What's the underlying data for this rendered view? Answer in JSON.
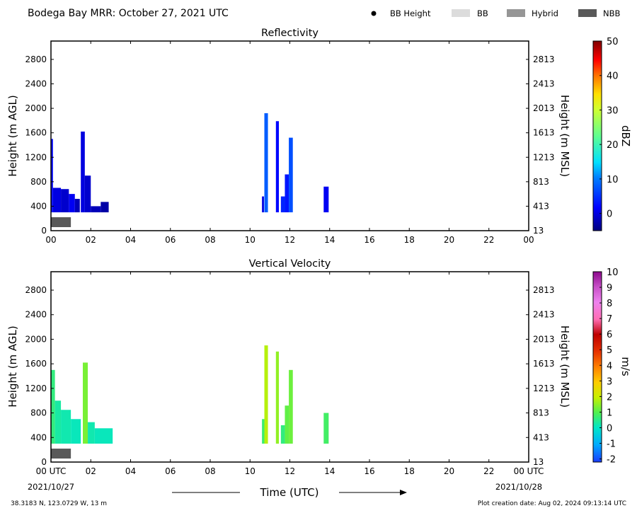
{
  "figure_title": "Bodega Bay MRR:  October 27, 2021 UTC",
  "legend": [
    {
      "label": "BB Height",
      "kind": "dot",
      "color": "#000000"
    },
    {
      "label": "BB",
      "kind": "box",
      "color": "#dcdcdc"
    },
    {
      "label": "Hybrid",
      "kind": "box",
      "color": "#969696"
    },
    {
      "label": "NBB",
      "kind": "box",
      "color": "#595959"
    }
  ],
  "x_label": "Time (UTC)",
  "x_ticks": [
    "00",
    "02",
    "04",
    "06",
    "08",
    "10",
    "12",
    "14",
    "16",
    "18",
    "20",
    "22",
    "00"
  ],
  "x_ticks_bottom": [
    "00 UTC",
    "02",
    "04",
    "06",
    "08",
    "10",
    "12",
    "14",
    "16",
    "18",
    "20",
    "22",
    "00 UTC"
  ],
  "date_start": "2021/10/27",
  "date_end": "2021/10/28",
  "footer_left": "38.3183 N, 123.0729 W, 13 m",
  "footer_right": "Plot creation date: Aug 02, 2024 09:13:14 UTC",
  "chart_data": [
    {
      "type": "heatmap",
      "title": "Reflectivity",
      "xlabel": "",
      "ylabel": "Height (m AGL)",
      "ylabel_right": "Height (m MSL)",
      "xlim": [
        0,
        24
      ],
      "ylim": [
        0,
        3100
      ],
      "yticks": [
        0,
        400,
        800,
        1200,
        1600,
        2000,
        2400,
        2800
      ],
      "yticks_right": [
        "13",
        "413",
        "813",
        "1213",
        "1613",
        "2013",
        "2413",
        "2813"
      ],
      "colorbar": {
        "label": "dBZ",
        "min": -5,
        "max": 50,
        "ticks": [
          0,
          10,
          20,
          30,
          40,
          50
        ]
      },
      "bright_band": [
        {
          "class": "NBB",
          "t_start": 0.0,
          "t_end": 1.0
        }
      ],
      "cells": [
        {
          "t0": 0.0,
          "t1": 0.1,
          "h0": 300,
          "h1": 1500,
          "v": 2
        },
        {
          "t0": 0.1,
          "t1": 0.5,
          "h0": 300,
          "h1": 700,
          "v": 0
        },
        {
          "t0": 0.5,
          "t1": 0.9,
          "h0": 300,
          "h1": 680,
          "v": -1
        },
        {
          "t0": 0.9,
          "t1": 1.2,
          "h0": 300,
          "h1": 600,
          "v": 1
        },
        {
          "t0": 1.2,
          "t1": 1.45,
          "h0": 300,
          "h1": 520,
          "v": -2
        },
        {
          "t0": 1.5,
          "t1": 1.7,
          "h0": 300,
          "h1": 1620,
          "v": 0
        },
        {
          "t0": 1.7,
          "t1": 2.0,
          "h0": 300,
          "h1": 900,
          "v": -1
        },
        {
          "t0": 2.0,
          "t1": 2.5,
          "h0": 300,
          "h1": 400,
          "v": -2
        },
        {
          "t0": 2.5,
          "t1": 2.9,
          "h0": 300,
          "h1": 470,
          "v": -3
        },
        {
          "t0": 10.6,
          "t1": 10.7,
          "h0": 300,
          "h1": 560,
          "v": 0
        },
        {
          "t0": 10.72,
          "t1": 10.9,
          "h0": 300,
          "h1": 1920,
          "v": 8
        },
        {
          "t0": 11.3,
          "t1": 11.45,
          "h0": 300,
          "h1": 1790,
          "v": 2
        },
        {
          "t0": 11.55,
          "t1": 11.75,
          "h0": 300,
          "h1": 560,
          "v": 4
        },
        {
          "t0": 11.75,
          "t1": 11.95,
          "h0": 300,
          "h1": 920,
          "v": 3
        },
        {
          "t0": 11.95,
          "t1": 12.15,
          "h0": 300,
          "h1": 1520,
          "v": 7
        },
        {
          "t0": 13.7,
          "t1": 13.95,
          "h0": 300,
          "h1": 720,
          "v": 1
        }
      ]
    },
    {
      "type": "heatmap",
      "title": "Vertical Velocity",
      "xlabel": "Time (UTC)",
      "ylabel": "Height (m AGL)",
      "ylabel_right": "Height (m MSL)",
      "xlim": [
        0,
        24
      ],
      "ylim": [
        0,
        3100
      ],
      "yticks": [
        0,
        400,
        800,
        1200,
        1600,
        2000,
        2400,
        2800
      ],
      "yticks_right": [
        "13",
        "413",
        "813",
        "1213",
        "1613",
        "2013",
        "2413",
        "2813"
      ],
      "colorbar": {
        "label": "m/s",
        "min": -2.2,
        "max": 10,
        "ticks": [
          -2,
          -1,
          0,
          1,
          2,
          3,
          4,
          5,
          6,
          7,
          8,
          9,
          10
        ]
      },
      "bright_band": [
        {
          "class": "NBB",
          "t_start": 0.0,
          "t_end": 1.0
        }
      ],
      "cells": [
        {
          "t0": 0.0,
          "t1": 0.2,
          "h0": 300,
          "h1": 1500,
          "v": 0.6
        },
        {
          "t0": 0.2,
          "t1": 0.5,
          "h0": 300,
          "h1": 1000,
          "v": 0.3
        },
        {
          "t0": 0.5,
          "t1": 1.0,
          "h0": 300,
          "h1": 850,
          "v": 0.2
        },
        {
          "t0": 1.0,
          "t1": 1.5,
          "h0": 300,
          "h1": 700,
          "v": 0.1
        },
        {
          "t0": 1.6,
          "t1": 1.85,
          "h0": 300,
          "h1": 1620,
          "v": 1.3
        },
        {
          "t0": 1.85,
          "t1": 2.2,
          "h0": 300,
          "h1": 650,
          "v": 0.2
        },
        {
          "t0": 2.2,
          "t1": 3.1,
          "h0": 300,
          "h1": 550,
          "v": 0.1
        },
        {
          "t0": 10.6,
          "t1": 10.72,
          "h0": 300,
          "h1": 700,
          "v": 0.7
        },
        {
          "t0": 10.72,
          "t1": 10.9,
          "h0": 300,
          "h1": 1900,
          "v": 1.8
        },
        {
          "t0": 11.3,
          "t1": 11.45,
          "h0": 300,
          "h1": 1800,
          "v": 1.5
        },
        {
          "t0": 11.55,
          "t1": 11.75,
          "h0": 300,
          "h1": 600,
          "v": 0.6
        },
        {
          "t0": 11.75,
          "t1": 11.95,
          "h0": 300,
          "h1": 920,
          "v": 1.1
        },
        {
          "t0": 11.95,
          "t1": 12.15,
          "h0": 300,
          "h1": 1500,
          "v": 1.2
        },
        {
          "t0": 13.7,
          "t1": 13.95,
          "h0": 300,
          "h1": 800,
          "v": 0.8
        }
      ]
    }
  ]
}
